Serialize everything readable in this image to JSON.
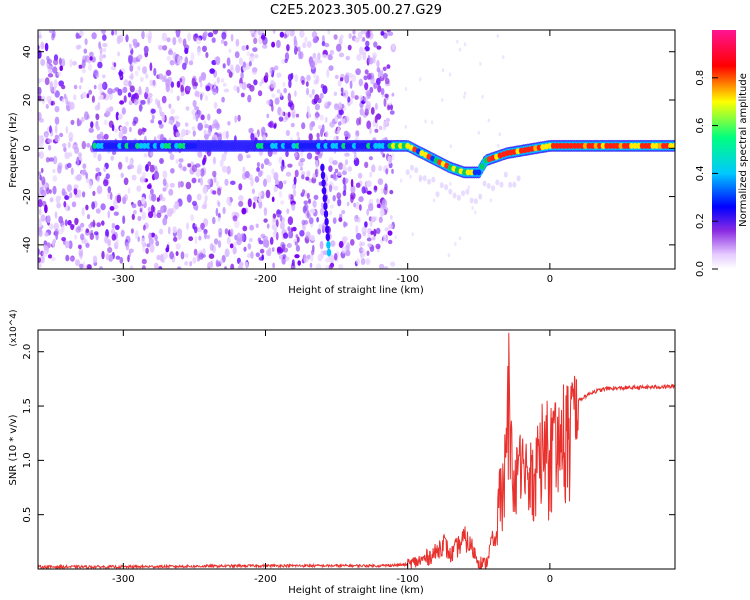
{
  "page_title": "C2E5.2023.305.00.27.G29",
  "chart_data": [
    {
      "type": "heatmap",
      "xlabel": "Height of straight line (km)",
      "ylabel": "Frequency (Hz)",
      "xlim": [
        -360,
        88
      ],
      "ylim": [
        -50,
        49
      ],
      "xticks": [
        -300,
        -200,
        -100,
        0
      ],
      "yticks": [
        -40,
        -20,
        0,
        20,
        40
      ],
      "colorbar": {
        "label": "Normalized spectral amplitude",
        "range": [
          0.0,
          1.0
        ],
        "ticks": [
          "0.0",
          "0.2",
          "0.4",
          "0.6",
          "0.8"
        ],
        "colormap": [
          "#ffffff",
          "#e9d6ff",
          "#8a2be2",
          "#0000ff",
          "#00c8ff",
          "#00ff80",
          "#ffff00",
          "#ff0000",
          "#ff1493"
        ]
      },
      "ridge": {
        "x": [
          -320,
          -300,
          -280,
          -255,
          -200,
          -180,
          -165,
          -150,
          -130,
          -110,
          -100,
          -90,
          -80,
          -70,
          -60,
          -50,
          -45,
          -40,
          -30,
          -20,
          -10,
          0,
          20,
          40,
          60,
          88
        ],
        "frequency": [
          1,
          1,
          1,
          1,
          1,
          1,
          1,
          1,
          1,
          1,
          1,
          -2,
          -5,
          -8,
          -10,
          -10,
          -5,
          -4,
          -2,
          -1,
          0,
          1,
          1,
          1,
          1,
          1
        ]
      }
    },
    {
      "type": "line",
      "xlabel": "Height of straight line (km)",
      "ylabel": "SNR (10 * v/v)",
      "y_multiplier": "(x10^4)",
      "xlim": [
        -360,
        88
      ],
      "ylim": [
        0,
        2.2
      ],
      "xticks": [
        -300,
        -200,
        -100,
        0
      ],
      "yticks": [
        "0.5",
        "1.0",
        "1.5",
        "2.0"
      ],
      "series": [
        {
          "color": "#e8302c",
          "x": [
            -360,
            -300,
            -200,
            -150,
            -120,
            -100,
            -90,
            -80,
            -75,
            -70,
            -60,
            -55,
            -50,
            -45,
            -40,
            -35,
            -32,
            -30,
            -29,
            -27,
            -25,
            -20,
            -15,
            -10,
            -5,
            0,
            5,
            10,
            15,
            20,
            30,
            40,
            60,
            88
          ],
          "y": [
            0.02,
            0.02,
            0.03,
            0.03,
            0.03,
            0.04,
            0.08,
            0.15,
            0.25,
            0.12,
            0.28,
            0.2,
            0.07,
            0.04,
            0.3,
            0.7,
            0.95,
            1.2,
            2.2,
            1.1,
            0.8,
            1.0,
            0.95,
            1.1,
            1.2,
            1.25,
            1.3,
            1.38,
            1.45,
            1.55,
            1.63,
            1.66,
            1.67,
            1.68
          ]
        }
      ]
    }
  ]
}
